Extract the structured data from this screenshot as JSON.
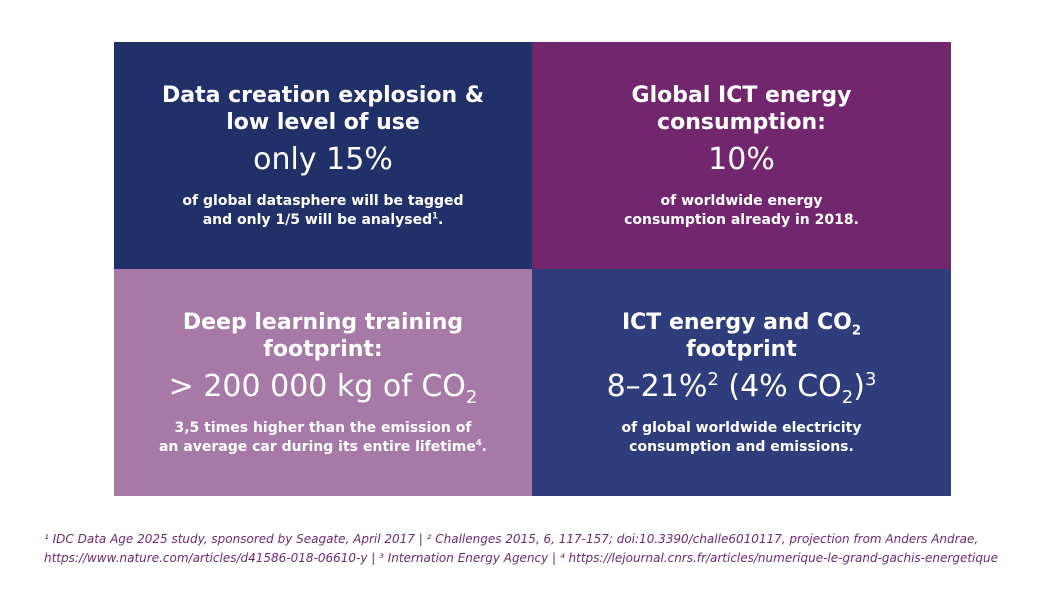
{
  "colors": {
    "top_left": "#22306a",
    "top_right": "#72266e",
    "bottom_left": "#a779a6",
    "bottom_right": "#2f3d7c",
    "footnote": "#6e2a72"
  },
  "cells": {
    "data_creation": {
      "heading_line1": "Data creation explosion &",
      "heading_line2": "low level of use",
      "stat": "only 15%",
      "desc_line1": "of global datasphere will be tagged",
      "desc_line2": "and only 1/5 will be analysed",
      "desc_sup": "1",
      "desc_end": "."
    },
    "ict_energy": {
      "heading_line1": "Global ICT energy",
      "heading_line2": "consumption:",
      "stat": "10%",
      "desc_line1": "of worldwide energy",
      "desc_line2": "consumption already in 2018."
    },
    "deep_learning": {
      "heading_line1": "Deep learning training",
      "heading_line2": "footprint:",
      "stat_text": "> 200 000 kg of CO",
      "stat_sub": "2",
      "desc_line1": "3,5 times higher than the emission of",
      "desc_line2": "an average car during its entire lifetime",
      "desc_sup": "4",
      "desc_end": "."
    },
    "ict_co2": {
      "heading_line1_text": "ICT energy and CO",
      "heading_line1_sub": "2",
      "heading_line2": "footprint",
      "stat_part1": "8–21%",
      "stat_sup1": "2",
      "stat_part2": " (4% CO",
      "stat_sub": "2",
      "stat_part3": ")",
      "stat_sup2": "3",
      "desc_line1": "of global worldwide electricity",
      "desc_line2": "consumption and emissions."
    }
  },
  "footnotes": {
    "line1": "¹ IDC Data Age 2025 study, sponsored by Seagate, April 2017 | ² Challenges 2015, 6, 117-157; doi:10.3390/challe6010117, projection from Anders Andrae,",
    "line2": "https://www.nature.com/articles/d41586-018-06610-y | ³ Internation Energy Agency | ⁴ https://lejournal.cnrs.fr/articles/numerique-le-grand-gachis-energetique"
  }
}
